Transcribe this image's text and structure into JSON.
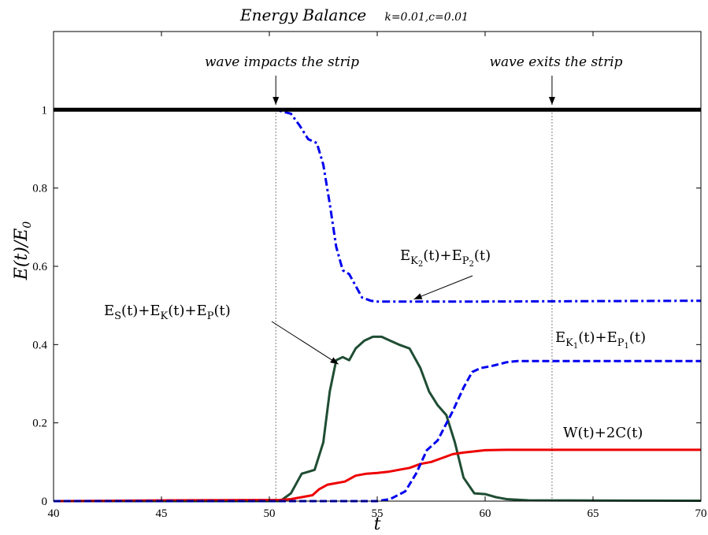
{
  "chart_data": {
    "type": "line",
    "title": "Energy Balance",
    "subtitle": "k=0.01,c=0.01",
    "xlabel": "t",
    "ylabel": "E(t)/E_0",
    "xlim": [
      40,
      70
    ],
    "ylim": [
      0,
      1.2
    ],
    "xticks": [
      40,
      45,
      50,
      55,
      60,
      65,
      70
    ],
    "yticks": [
      0,
      0.2,
      0.4,
      0.6,
      0.8,
      1
    ],
    "grid": false,
    "colors": {
      "total": "#000000",
      "reflected": "#0000ee",
      "transmitted": "#0000ee",
      "strip": "#1f4d33",
      "work": "#ee0000"
    },
    "annotations": [
      {
        "text": "wave impacts the strip",
        "x": 50.3
      },
      {
        "text": "wave exits the strip",
        "x": 63.1
      }
    ],
    "series": [
      {
        "key": "total",
        "style": "solid-thick",
        "x": [
          40,
          70
        ],
        "y": [
          1.0,
          1.0
        ]
      },
      {
        "key": "reflected",
        "name": "E_K2(t)+E_P2(t)",
        "style": "dashdot",
        "x": [
          40,
          50.3,
          51.0,
          51.4,
          51.8,
          52.2,
          52.5,
          52.8,
          53.1,
          53.4,
          53.7,
          54.0,
          54.3,
          54.7,
          55.0,
          60.0,
          65.0,
          70.0
        ],
        "y": [
          1.0,
          1.0,
          0.99,
          0.96,
          0.925,
          0.915,
          0.86,
          0.76,
          0.65,
          0.59,
          0.58,
          0.55,
          0.52,
          0.512,
          0.51,
          0.51,
          0.511,
          0.512
        ]
      },
      {
        "key": "transmitted",
        "name": "E_K1(t)+E_P1(t)",
        "style": "dashed",
        "x": [
          40,
          55.0,
          55.6,
          56.3,
          56.8,
          57.3,
          57.8,
          58.5,
          59.0,
          59.4,
          59.8,
          60.3,
          61.0,
          61.5,
          62.5,
          65.0,
          70.0
        ],
        "y": [
          0.0,
          0.0,
          0.005,
          0.025,
          0.07,
          0.13,
          0.155,
          0.23,
          0.29,
          0.33,
          0.34,
          0.345,
          0.355,
          0.358,
          0.358,
          0.358,
          0.358
        ]
      },
      {
        "key": "strip",
        "name": "E_S(t)+E_K(t)+E_P(t)",
        "style": "solid",
        "x": [
          40,
          50.5,
          51.0,
          51.5,
          51.8,
          52.1,
          52.5,
          52.8,
          53.1,
          53.4,
          53.7,
          54.0,
          54.4,
          54.8,
          55.2,
          55.6,
          56.0,
          56.5,
          57.0,
          57.4,
          57.8,
          58.2,
          58.6,
          59.0,
          59.5,
          60.0,
          60.5,
          61.0,
          62.0,
          70.0
        ],
        "y": [
          0.0,
          0.0,
          0.02,
          0.07,
          0.075,
          0.08,
          0.15,
          0.28,
          0.36,
          0.368,
          0.36,
          0.39,
          0.41,
          0.42,
          0.42,
          0.41,
          0.4,
          0.39,
          0.34,
          0.28,
          0.245,
          0.22,
          0.15,
          0.06,
          0.02,
          0.018,
          0.01,
          0.005,
          0.002,
          0.001
        ]
      },
      {
        "key": "work",
        "name": "W(t)+2C(t)",
        "style": "solid",
        "x": [
          40,
          45.5,
          50.5,
          51.0,
          51.5,
          52.0,
          52.3,
          52.7,
          53.0,
          53.5,
          54.0,
          54.5,
          55.0,
          55.5,
          56.0,
          56.5,
          57.0,
          57.5,
          58.0,
          58.5,
          59.0,
          59.5,
          60.0,
          61.0,
          70.0
        ],
        "y": [
          0.0,
          0.002,
          0.003,
          0.005,
          0.01,
          0.015,
          0.03,
          0.042,
          0.045,
          0.05,
          0.065,
          0.07,
          0.072,
          0.075,
          0.08,
          0.085,
          0.095,
          0.1,
          0.11,
          0.12,
          0.124,
          0.127,
          0.13,
          0.131,
          0.131
        ]
      }
    ]
  }
}
